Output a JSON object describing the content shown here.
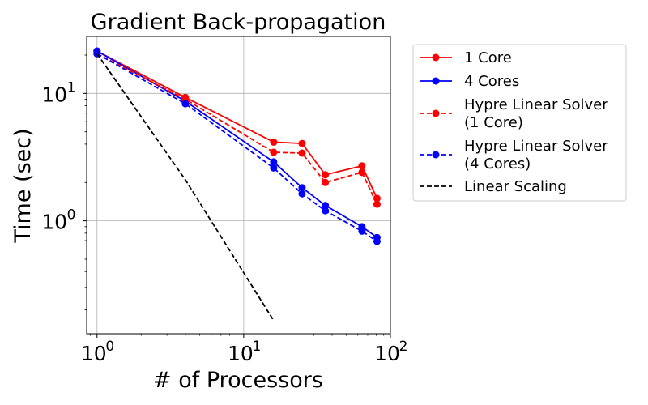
{
  "chart_data": {
    "type": "line",
    "title": "Gradient Back-propagation",
    "xlabel": "# of Processors",
    "ylabel": "Time (sec)",
    "xscale": "log",
    "yscale": "log",
    "xlim": [
      0.85,
      100
    ],
    "ylim": [
      0.13,
      28
    ],
    "grid": "major",
    "legend_placement": "outside-upper-right",
    "x_ticks": [
      {
        "value": 1,
        "mantissa": "10",
        "exponent": "0"
      },
      {
        "value": 10,
        "mantissa": "10",
        "exponent": "1"
      },
      {
        "value": 100,
        "mantissa": "10",
        "exponent": "2"
      }
    ],
    "y_ticks": [
      {
        "value": 1,
        "mantissa": "10",
        "exponent": "0"
      },
      {
        "value": 10,
        "mantissa": "10",
        "exponent": "1"
      }
    ],
    "series": [
      {
        "name": "1 Core",
        "color": "#ff0000",
        "dash": "solid",
        "marker": true,
        "x": [
          1,
          4,
          16,
          25,
          36,
          64,
          81
        ],
        "y": [
          21.5,
          9.3,
          4.15,
          4.05,
          2.3,
          2.7,
          1.5
        ]
      },
      {
        "name": "4 Cores",
        "color": "#0000ff",
        "dash": "solid",
        "marker": true,
        "x": [
          1,
          4,
          16,
          25,
          36,
          64,
          81
        ],
        "y": [
          21.5,
          8.7,
          2.9,
          1.82,
          1.32,
          0.9,
          0.74
        ]
      },
      {
        "name": "Hypre Linear Solver\n(1 Core)",
        "color": "#ff0000",
        "dash": "dashed",
        "marker": true,
        "x": [
          1,
          4,
          16,
          25,
          36,
          64,
          81
        ],
        "y": [
          20.5,
          9.0,
          3.45,
          3.4,
          2.0,
          2.4,
          1.35
        ]
      },
      {
        "name": "Hypre Linear Solver\n(4 Cores)",
        "color": "#0000ff",
        "dash": "dashed",
        "marker": true,
        "x": [
          1,
          4,
          16,
          25,
          36,
          64,
          81
        ],
        "y": [
          20.5,
          8.3,
          2.6,
          1.63,
          1.2,
          0.83,
          0.69
        ]
      },
      {
        "name": "Linear Scaling",
        "color": "#000000",
        "dash": "dashed",
        "marker": false,
        "x": [
          1,
          4,
          16
        ],
        "y": [
          20.5,
          2.1,
          0.165
        ]
      }
    ]
  }
}
